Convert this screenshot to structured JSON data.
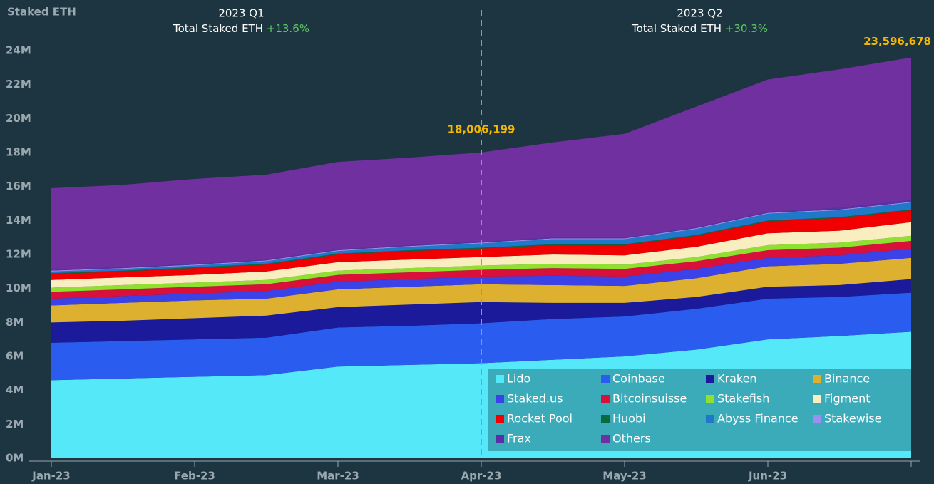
{
  "chart_data": {
    "type": "stacked_area",
    "y_label": "Staked ETH",
    "categories": [
      "Jan-23",
      null,
      "Feb-23",
      null,
      "Mar-23",
      null,
      "Apr-23",
      null,
      "May-23",
      null,
      "Jun-23",
      null,
      null
    ],
    "ylim": [
      0,
      24.8
    ],
    "yticks": [
      {
        "value": 0,
        "label": "0M"
      },
      {
        "value": 2,
        "label": "2M"
      },
      {
        "value": 4,
        "label": "4M"
      },
      {
        "value": 6,
        "label": "6M"
      },
      {
        "value": 8,
        "label": "8M"
      },
      {
        "value": 10,
        "label": "10M"
      },
      {
        "value": 12,
        "label": "12M"
      },
      {
        "value": 14,
        "label": "14M"
      },
      {
        "value": 16,
        "label": "16M"
      },
      {
        "value": 18,
        "label": "18M"
      },
      {
        "value": 20,
        "label": "20M"
      },
      {
        "value": 22,
        "label": "22M"
      },
      {
        "value": 24,
        "label": "24M"
      }
    ],
    "series": [
      {
        "name": "Lido",
        "color": "#55e8f8",
        "values": [
          4.6,
          4.7,
          4.8,
          4.9,
          5.4,
          5.5,
          5.6,
          5.8,
          6.0,
          6.4,
          7.0,
          7.2,
          7.45
        ]
      },
      {
        "name": "Coinbase",
        "color": "#2a5cf0",
        "values": [
          2.2,
          2.2,
          2.2,
          2.2,
          2.3,
          2.3,
          2.35,
          2.4,
          2.35,
          2.4,
          2.4,
          2.3,
          2.3
        ]
      },
      {
        "name": "Kraken",
        "color": "#1a1a9a",
        "values": [
          1.2,
          1.2,
          1.25,
          1.3,
          1.2,
          1.25,
          1.25,
          0.95,
          0.8,
          0.7,
          0.7,
          0.7,
          0.8
        ]
      },
      {
        "name": "Binance",
        "color": "#deb030",
        "values": [
          1.0,
          1.05,
          1.05,
          1.0,
          1.05,
          1.05,
          1.05,
          1.05,
          1.0,
          1.1,
          1.2,
          1.25,
          1.25
        ]
      },
      {
        "name": "Staked.us",
        "color": "#3a42e8",
        "values": [
          0.4,
          0.4,
          0.4,
          0.45,
          0.45,
          0.45,
          0.45,
          0.55,
          0.55,
          0.55,
          0.5,
          0.5,
          0.55
        ]
      },
      {
        "name": "Bitcoinsuisse",
        "color": "#d8103a",
        "values": [
          0.4,
          0.4,
          0.4,
          0.4,
          0.4,
          0.4,
          0.4,
          0.45,
          0.45,
          0.45,
          0.45,
          0.45,
          0.45
        ]
      },
      {
        "name": "Stakefish",
        "color": "#90e030",
        "values": [
          0.25,
          0.25,
          0.25,
          0.25,
          0.25,
          0.25,
          0.25,
          0.25,
          0.25,
          0.25,
          0.3,
          0.3,
          0.3
        ]
      },
      {
        "name": "Figment",
        "color": "#f8eec0",
        "values": [
          0.45,
          0.45,
          0.45,
          0.5,
          0.5,
          0.5,
          0.5,
          0.55,
          0.55,
          0.6,
          0.7,
          0.7,
          0.8
        ]
      },
      {
        "name": "Rocket Pool",
        "color": "#f00000",
        "values": [
          0.35,
          0.35,
          0.4,
          0.4,
          0.45,
          0.5,
          0.5,
          0.55,
          0.6,
          0.65,
          0.7,
          0.75,
          0.7
        ]
      },
      {
        "name": "Huobi",
        "color": "#0a6a40",
        "values": [
          0.05,
          0.05,
          0.05,
          0.05,
          0.05,
          0.05,
          0.05,
          0.05,
          0.05,
          0.05,
          0.05,
          0.05,
          0.05
        ]
      },
      {
        "name": "Abyss Finance",
        "color": "#1f78c8",
        "values": [
          0.1,
          0.1,
          0.1,
          0.15,
          0.15,
          0.2,
          0.25,
          0.3,
          0.3,
          0.35,
          0.4,
          0.4,
          0.4
        ]
      },
      {
        "name": "Stakewise",
        "color": "#9a90f0",
        "values": [
          0.05,
          0.05,
          0.05,
          0.05,
          0.05,
          0.05,
          0.05,
          0.05,
          0.05,
          0.05,
          0.05,
          0.05,
          0.05
        ]
      },
      {
        "name": "Frax",
        "color": "#5a30a8",
        "values": [
          0.05,
          0.05,
          0.05,
          0.05,
          0.05,
          0.05,
          0.05,
          0.05,
          0.05,
          0.05,
          0.05,
          0.1,
          0.1
        ]
      },
      {
        "name": "Others",
        "color": "#7030a0",
        "values": [
          4.8,
          4.85,
          5.0,
          5.0,
          5.15,
          5.15,
          5.256199,
          5.6,
          6.1,
          7.1,
          7.8,
          8.15,
          8.396678
        ]
      }
    ],
    "annotations": [
      {
        "title": "2023 Q1",
        "label": "Total Staked ETH",
        "change": "+13.6%"
      },
      {
        "title": "2023 Q2",
        "label": "Total Staked ETH",
        "change": "+30.3%"
      }
    ],
    "value_labels": [
      {
        "index": 6,
        "label": "18,006,199"
      },
      {
        "index": 12,
        "label": "23,596,678"
      }
    ]
  }
}
